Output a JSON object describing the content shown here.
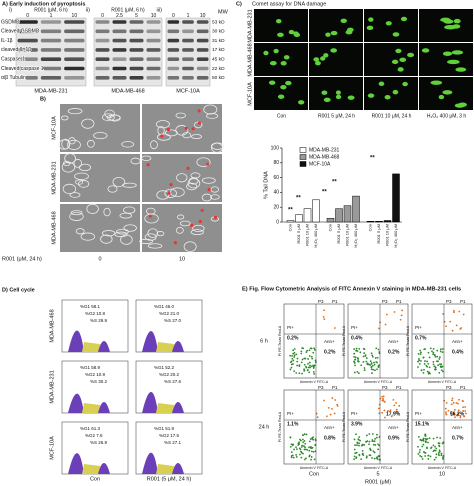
{
  "panel_a": {
    "title": "A) Early induction of pyroptosis",
    "mw_header": "MW",
    "blots": [
      {
        "label": "i)",
        "treatment": "R001 (μM, 6 h)",
        "doses": [
          "0",
          "1",
          "10"
        ],
        "cell_line": "MDA-MB-231"
      },
      {
        "label": "ii)",
        "treatment": "R001 (μM, 6 h)",
        "doses": [
          "0",
          "2.5",
          "5",
          "10"
        ],
        "cell_line": "MDA-MB-468"
      },
      {
        "label": "iii)",
        "treatment": null,
        "doses": [
          "0",
          "1",
          "10"
        ],
        "cell_line": "MCF-10A"
      }
    ],
    "proteins": [
      "GSDMD",
      "Cleaved GSDMD",
      "IL-1β",
      "cleaved IL-1β",
      "Caspase 1",
      "Cleaved caspase 1",
      "α/β Tubulin"
    ],
    "mw": [
      "53 kD",
      "30 kD",
      "31 kD",
      "17 kD",
      "45 kD",
      "22 kD",
      "50 kD"
    ]
  },
  "panel_b": {
    "title": "B)",
    "rows": [
      "MCF-10A",
      "MDA-MB-231",
      "MDA-MB-468"
    ],
    "treatment": "R001 (μM, 24 h)",
    "doses": [
      "0",
      "10"
    ]
  },
  "panel_c": {
    "title": "C)",
    "subtitle": "Comet assay for DNA damage",
    "rows": [
      "MDA-MB-231",
      "MDA-MB-468",
      "MCF-10A"
    ],
    "columns": [
      "Con",
      "R001 5 μM, 24 h",
      "R001 10 μM, 24 h",
      "H₂O₂ 400 μM, 3 h"
    ],
    "chart": {
      "type": "bar",
      "y_label": "% Tail DNA",
      "ylim": [
        0,
        100
      ],
      "yticks": [
        0,
        20,
        40,
        60,
        80,
        100
      ],
      "categories": [
        "Con",
        "R001 5 μM",
        "R001 10 μM",
        "H₂O₂ 400 μM"
      ],
      "series": [
        {
          "name": "MDA-MB-231",
          "color": "#ffffff",
          "values": [
            2,
            10,
            18,
            30
          ]
        },
        {
          "name": "MDA-MB-468",
          "color": "#9a9a9a",
          "values": [
            5,
            18,
            22,
            35
          ]
        },
        {
          "name": "MCF-10A",
          "color": "#111111",
          "values": [
            1,
            1,
            2,
            65
          ]
        }
      ],
      "significance": [
        "**",
        "**",
        "**",
        "**",
        "**"
      ]
    }
  },
  "panel_d": {
    "title": "D) Cell cycle",
    "rows": [
      "MDA-MB-468",
      "MDA-MB-231",
      "MCF-10A"
    ],
    "columns": [
      "Con",
      "R001 (5 μM, 24 h)"
    ],
    "plots": [
      [
        [
          "%G1 58.1",
          "%G2 10.8",
          "%S 29.9"
        ],
        [
          "%G1 46.0",
          "%G2 21.0",
          "%S 27.0"
        ]
      ],
      [
        [
          "%G1 58.9",
          "%G2 10.9",
          "%S 30.2"
        ],
        [
          "%G1 52.2",
          "%G2 20.2",
          "%S 27.6"
        ]
      ],
      [
        [
          "%G1 61.3",
          "%G2 7.6",
          "%S 26.9"
        ],
        [
          "%G1 51.9",
          "%G2 17.5",
          "%S 27.1"
        ]
      ]
    ]
  },
  "panel_e": {
    "title": "E) Fig. Flow Cytometric Analysis of FITC Annexin V staining in MDA-MB-231 cells",
    "rows": [
      "6 h",
      "24 h"
    ],
    "columns": [
      "Con",
      "5",
      "10"
    ],
    "treatment": "R001 (μM)",
    "gate_labels": [
      "P3",
      "P1",
      "PI+",
      "Ann+"
    ],
    "y_axis": "PI PE-Texas Red-A",
    "x_axis": "Annexin V FITC-A",
    "plots": [
      [
        {
          "pi": "0.2%",
          "double": null,
          "ann": "0.2%"
        },
        {
          "pi": "0.4%",
          "double": null,
          "ann": "0.2%"
        },
        {
          "pi": "0.7%",
          "double": null,
          "ann": "0.4%"
        }
      ],
      [
        {
          "pi": "1.1%",
          "double": null,
          "ann": "0.8%"
        },
        {
          "pi": "3.9%",
          "double": "17.9%",
          "ann": "0.9%"
        },
        {
          "pi": "15.1%",
          "double": "56.2%",
          "ann": "0.7%"
        }
      ]
    ]
  }
}
